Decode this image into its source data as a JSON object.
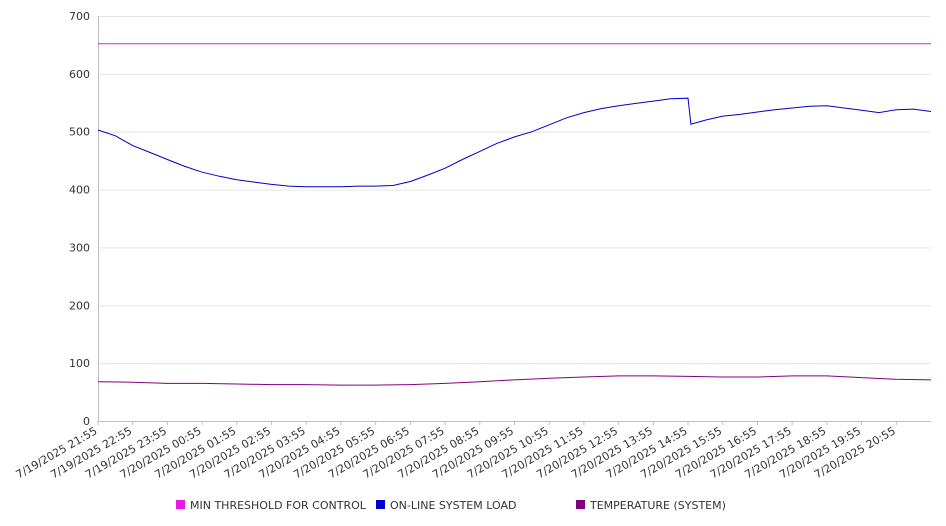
{
  "chart_data": {
    "type": "line",
    "title": "",
    "xlabel": "",
    "ylabel": "",
    "ylim": [
      0,
      700
    ],
    "yticks": [
      0,
      100,
      200,
      300,
      400,
      500,
      600,
      700
    ],
    "grid": "horizontal",
    "legend_position": "bottom",
    "x_start": "7/19/2025 21:55",
    "x_end": "7/20/2025 21:55",
    "x_tick_labels": [
      "7/19/2025 21:55",
      "7/19/2025 22:55",
      "7/19/2025 23:55",
      "7/20/2025 00:55",
      "7/20/2025 01:55",
      "7/20/2025 02:55",
      "7/20/2025 03:55",
      "7/20/2025 04:55",
      "7/20/2025 05:55",
      "7/20/2025 06:55",
      "7/20/2025 07:55",
      "7/20/2025 08:55",
      "7/20/2025 09:55",
      "7/20/2025 10:55",
      "7/20/2025 11:55",
      "7/20/2025 12:55",
      "7/20/2025 13:55",
      "7/20/2025 14:55",
      "7/20/2025 15:55",
      "7/20/2025 16:55",
      "7/20/2025 17:55",
      "7/20/2025 18:55",
      "7/20/2025 19:55",
      "7/20/2025 20:55"
    ],
    "series": [
      {
        "name": "MIN THRESHOLD FOR CONTROL",
        "color": "#e619e6",
        "points": [
          [
            "7/19/2025 21:55",
            652
          ],
          [
            "7/20/2025 21:55",
            652
          ]
        ]
      },
      {
        "name": "ON-LINE SYSTEM LOAD",
        "color": "#0000cc",
        "points": [
          [
            "7/19/2025 21:55",
            503
          ],
          [
            "7/19/2025 22:25",
            493
          ],
          [
            "7/19/2025 22:55",
            476
          ],
          [
            "7/19/2025 23:25",
            464
          ],
          [
            "7/19/2025 23:55",
            452
          ],
          [
            "7/20/2025 00:25",
            440
          ],
          [
            "7/20/2025 00:55",
            430
          ],
          [
            "7/20/2025 01:25",
            423
          ],
          [
            "7/20/2025 01:55",
            417
          ],
          [
            "7/20/2025 02:25",
            413
          ],
          [
            "7/20/2025 02:55",
            409
          ],
          [
            "7/20/2025 03:25",
            406
          ],
          [
            "7/20/2025 03:55",
            405
          ],
          [
            "7/20/2025 04:25",
            405
          ],
          [
            "7/20/2025 04:55",
            405
          ],
          [
            "7/20/2025 05:25",
            406
          ],
          [
            "7/20/2025 05:55",
            406
          ],
          [
            "7/20/2025 06:25",
            407
          ],
          [
            "7/20/2025 06:55",
            414
          ],
          [
            "7/20/2025 07:25",
            425
          ],
          [
            "7/20/2025 07:55",
            437
          ],
          [
            "7/20/2025 08:25",
            452
          ],
          [
            "7/20/2025 08:55",
            466
          ],
          [
            "7/20/2025 09:25",
            480
          ],
          [
            "7/20/2025 09:55",
            491
          ],
          [
            "7/20/2025 10:25",
            500
          ],
          [
            "7/20/2025 10:55",
            512
          ],
          [
            "7/20/2025 11:25",
            524
          ],
          [
            "7/20/2025 11:55",
            533
          ],
          [
            "7/20/2025 12:25",
            540
          ],
          [
            "7/20/2025 12:55",
            545
          ],
          [
            "7/20/2025 13:25",
            549
          ],
          [
            "7/20/2025 13:55",
            553
          ],
          [
            "7/20/2025 14:25",
            557
          ],
          [
            "7/20/2025 14:55",
            558
          ],
          [
            "7/20/2025 15:00",
            513
          ],
          [
            "7/20/2025 15:25",
            520
          ],
          [
            "7/20/2025 15:55",
            527
          ],
          [
            "7/20/2025 16:25",
            530
          ],
          [
            "7/20/2025 16:55",
            534
          ],
          [
            "7/20/2025 17:25",
            538
          ],
          [
            "7/20/2025 17:55",
            541
          ],
          [
            "7/20/2025 18:25",
            544
          ],
          [
            "7/20/2025 18:55",
            545
          ],
          [
            "7/20/2025 19:25",
            541
          ],
          [
            "7/20/2025 19:55",
            537
          ],
          [
            "7/20/2025 20:25",
            533
          ],
          [
            "7/20/2025 20:55",
            538
          ],
          [
            "7/20/2025 21:25",
            539
          ],
          [
            "7/20/2025 21:55",
            535
          ]
        ]
      },
      {
        "name": "TEMPERATURE (SYSTEM)",
        "color": "#800080",
        "points": [
          [
            "7/19/2025 21:55",
            68
          ],
          [
            "7/19/2025 22:55",
            67
          ],
          [
            "7/19/2025 23:55",
            65
          ],
          [
            "7/20/2025 00:55",
            65
          ],
          [
            "7/20/2025 01:55",
            64
          ],
          [
            "7/20/2025 02:55",
            63
          ],
          [
            "7/20/2025 03:55",
            63
          ],
          [
            "7/20/2025 04:55",
            62
          ],
          [
            "7/20/2025 05:55",
            62
          ],
          [
            "7/20/2025 06:55",
            63
          ],
          [
            "7/20/2025 07:55",
            65
          ],
          [
            "7/20/2025 08:55",
            68
          ],
          [
            "7/20/2025 09:55",
            71
          ],
          [
            "7/20/2025 10:55",
            74
          ],
          [
            "7/20/2025 11:55",
            76
          ],
          [
            "7/20/2025 12:55",
            78
          ],
          [
            "7/20/2025 13:55",
            78
          ],
          [
            "7/20/2025 14:55",
            77
          ],
          [
            "7/20/2025 15:55",
            76
          ],
          [
            "7/20/2025 16:55",
            76
          ],
          [
            "7/20/2025 17:55",
            78
          ],
          [
            "7/20/2025 18:55",
            78
          ],
          [
            "7/20/2025 19:55",
            75
          ],
          [
            "7/20/2025 20:55",
            72
          ],
          [
            "7/20/2025 21:55",
            71
          ]
        ]
      }
    ]
  }
}
